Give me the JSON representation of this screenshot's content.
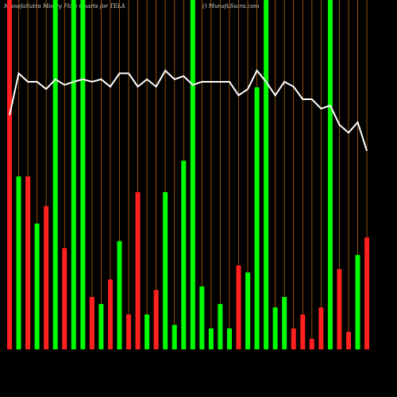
{
  "chart_data": {
    "type": "bar-line",
    "title": "MunafaSutra  Money Flow  Charts for TELA",
    "subtitle": "() MunafaSutra.com",
    "categories": [
      null,
      null,
      null,
      null,
      null,
      null,
      null,
      null,
      null,
      null,
      null,
      null,
      null,
      null,
      null,
      null,
      null,
      null,
      null,
      null,
      null,
      null,
      null,
      null,
      null,
      null,
      null,
      null,
      null,
      null,
      null,
      null,
      null,
      null,
      null,
      null,
      null,
      null,
      null,
      null
    ],
    "bars": {
      "values": [
        100,
        49.5,
        49.5,
        36,
        41,
        100,
        29,
        100,
        100,
        15,
        13,
        20,
        31,
        10,
        45,
        10,
        17,
        45,
        7,
        54,
        100,
        18,
        6,
        13,
        6,
        24,
        22,
        75,
        100,
        12,
        15,
        6,
        10,
        3,
        12,
        100,
        23,
        5,
        27,
        32
      ],
      "colors": [
        "#ff2020",
        "#00ff00",
        "#ff2020",
        "#00ff00",
        "#ff2020",
        "#00ff00",
        "#ff2020",
        "#00ff00",
        "#00ff00",
        "#ff2020",
        "#00ff00",
        "#ff2020",
        "#00ff00",
        "#ff2020",
        "#ff2020",
        "#00ff00",
        "#ff2020",
        "#00ff00",
        "#00ff00",
        "#00ff00",
        "#00ff00",
        "#00ff00",
        "#00ff00",
        "#00ff00",
        "#00ff00",
        "#ff2020",
        "#00ff00",
        "#00ff00",
        "#00ff00",
        "#00ff00",
        "#00ff00",
        "#ff2020",
        "#ff2020",
        "#ff2020",
        "#ff2020",
        "#00ff00",
        "#ff2020",
        "#ff2020",
        "#00ff00",
        "#ff2020"
      ]
    },
    "line": {
      "color": "#ffffff",
      "values": [
        67,
        79,
        76.6,
        76.6,
        74.5,
        77.3,
        75.7,
        76.6,
        77.3,
        76.6,
        77.3,
        75.2,
        79,
        79,
        75.2,
        77.3,
        75.2,
        79.8,
        77.3,
        78.2,
        75.7,
        76.6,
        76.6,
        76.6,
        76.6,
        72.7,
        74.5,
        79.8,
        76.6,
        72.7,
        76.6,
        75.2,
        71.6,
        71.6,
        68.9,
        69.8,
        64.3,
        62,
        65,
        56.8
      ]
    },
    "ylim": [
      0,
      100
    ],
    "grid_color": "#b8650a"
  }
}
